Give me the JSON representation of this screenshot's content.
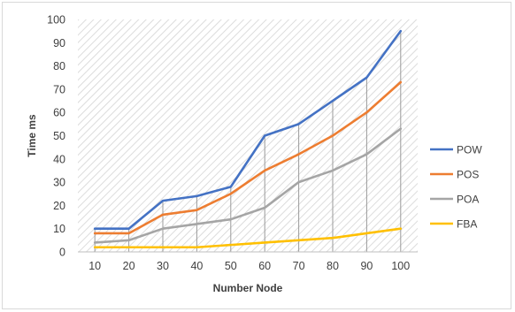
{
  "chart_data": {
    "type": "line",
    "title": "",
    "xlabel": "Number Node",
    "ylabel": "Time ms",
    "x": [
      "10",
      "20",
      "30",
      "40",
      "50",
      "60",
      "70",
      "80",
      "90",
      "100"
    ],
    "ylim": [
      0,
      100
    ],
    "yticks": [
      "0",
      "10",
      "20",
      "30",
      "40",
      "50",
      "60",
      "70",
      "80",
      "90",
      "100"
    ],
    "grid": false,
    "drop_lines": true,
    "plot_area_fill": "diagonal hatch",
    "legend_position": "right",
    "series": [
      {
        "name": "POW",
        "color": "#4472c4",
        "values": [
          10,
          10,
          22,
          24,
          28,
          50,
          55,
          65,
          75,
          95
        ]
      },
      {
        "name": "POS",
        "color": "#ed7d31",
        "values": [
          8,
          8,
          16,
          18,
          25,
          35,
          42,
          50,
          60,
          73
        ]
      },
      {
        "name": "POA",
        "color": "#a5a5a5",
        "values": [
          4,
          5,
          10,
          12,
          14,
          19,
          30,
          35,
          42,
          53
        ]
      },
      {
        "name": "FBA",
        "color": "#ffc000",
        "values": [
          2,
          2,
          2,
          2,
          3,
          4,
          5,
          6,
          8,
          10
        ]
      }
    ]
  }
}
